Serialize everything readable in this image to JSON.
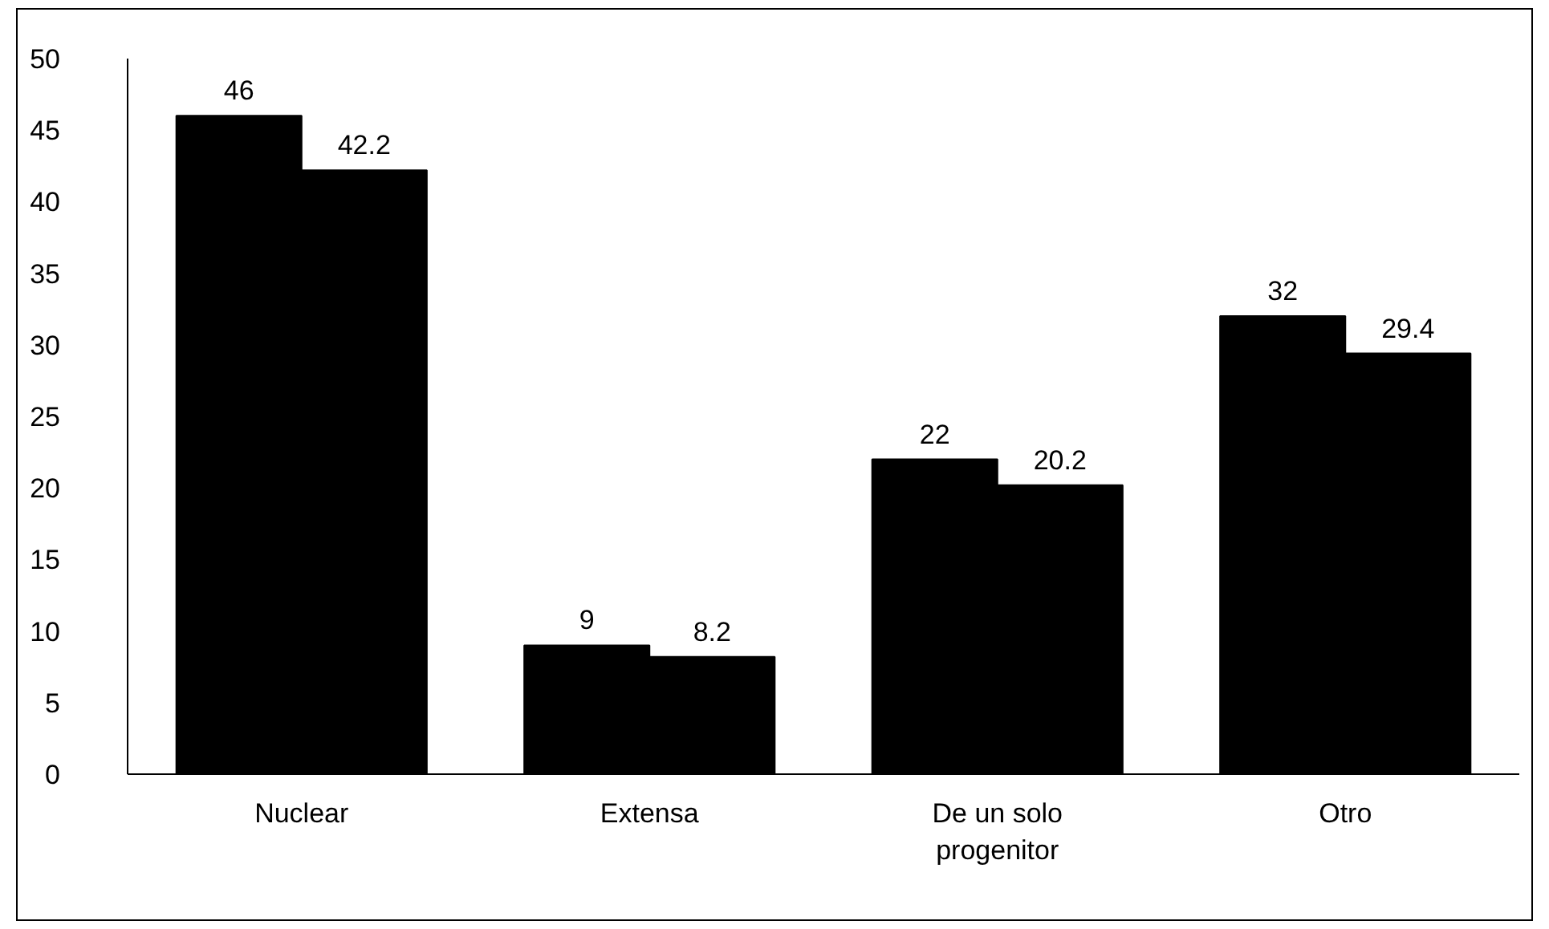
{
  "chart_data": {
    "type": "bar",
    "categories": [
      "Nuclear",
      "Extensa",
      "De un solo progenitor",
      "Otro"
    ],
    "series": [
      {
        "color": "#000000",
        "values": [
          46,
          9,
          22,
          32
        ]
      },
      {
        "color": "#000000",
        "values": [
          42.2,
          8.2,
          20.2,
          29.4
        ]
      }
    ],
    "ylim": [
      0,
      50
    ],
    "yticks": [
      0,
      5,
      10,
      15,
      20,
      25,
      30,
      35,
      40,
      45,
      50
    ],
    "data_labels": true,
    "grid": false
  }
}
